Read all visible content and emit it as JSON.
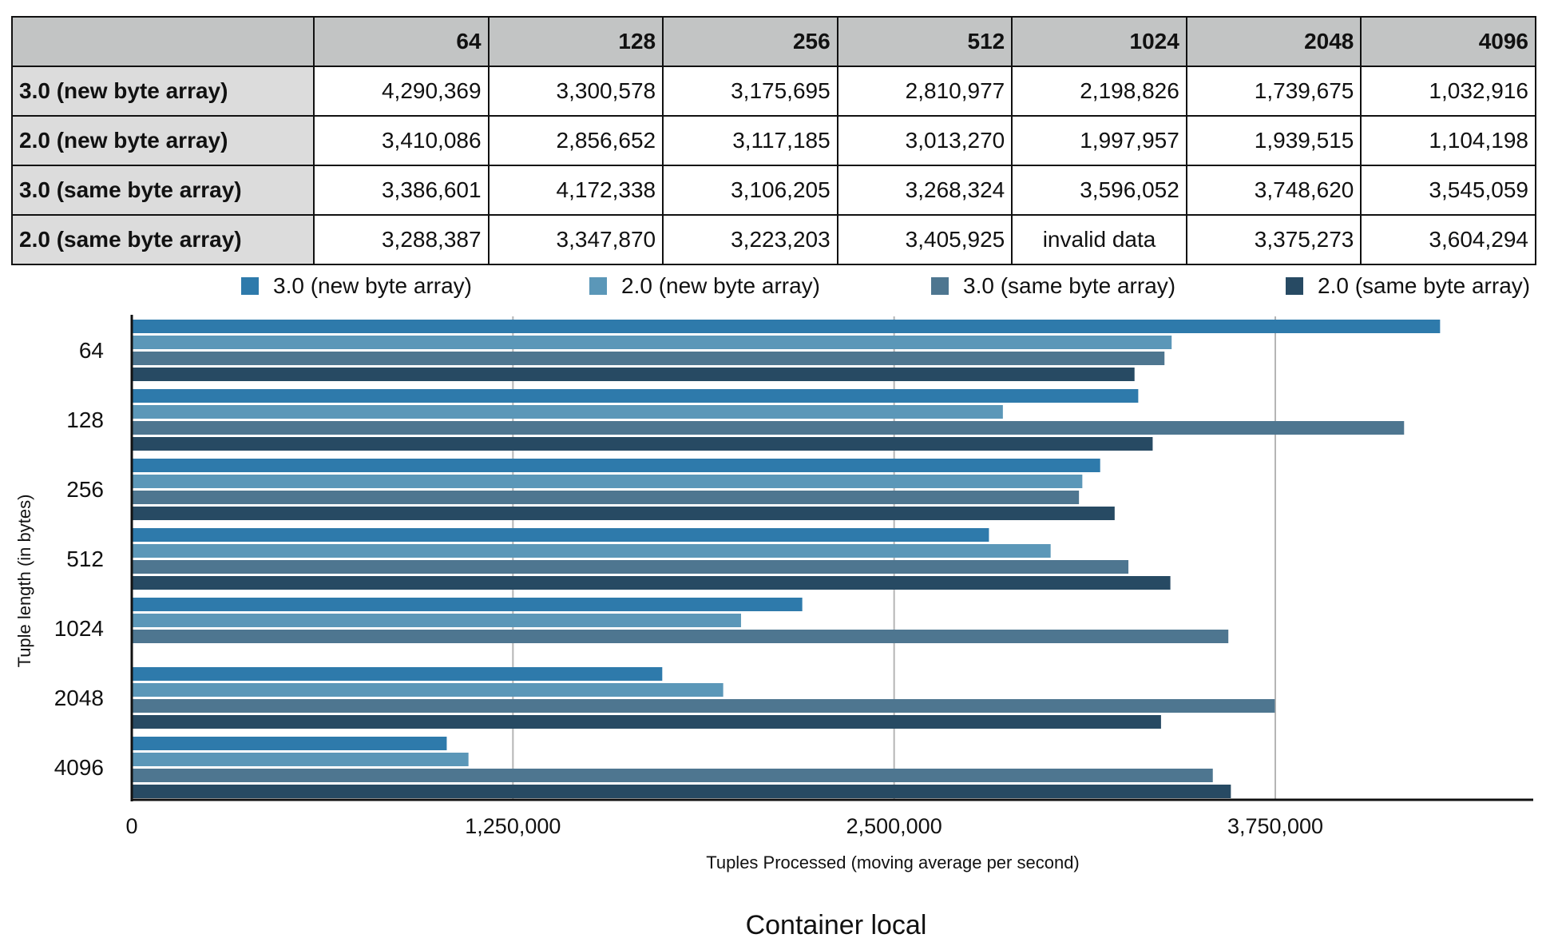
{
  "colors": {
    "series": [
      "#2e7aab",
      "#5b97b8",
      "#4e7690",
      "#274a63"
    ],
    "grid": "#b5b5b5",
    "axis": "#111111"
  },
  "table": {
    "columns": [
      "64",
      "128",
      "256",
      "512",
      "1024",
      "2048",
      "4096"
    ],
    "rows": [
      {
        "label": "3.0 (new  byte array)",
        "cells": [
          "4,290,369",
          "3,300,578",
          "3,175,695",
          "2,810,977",
          "2,198,826",
          "1,739,675",
          "1,032,916"
        ]
      },
      {
        "label": "2.0 (new byte array)",
        "cells": [
          "3,410,086",
          "2,856,652",
          "3,117,185",
          "3,013,270",
          "1,997,957",
          "1,939,515",
          "1,104,198"
        ]
      },
      {
        "label": "3.0 (same byte array)",
        "cells": [
          "3,386,601",
          "4,172,338",
          "3,106,205",
          "3,268,324",
          "3,596,052",
          "3,748,620",
          "3,545,059"
        ]
      },
      {
        "label": "2.0 (same byte array)",
        "cells": [
          "3,288,387",
          "3,347,870",
          "3,223,203",
          "3,405,925",
          "invalid data",
          "3,375,273",
          "3,604,294"
        ]
      }
    ]
  },
  "chart_data": {
    "type": "bar",
    "orientation": "horizontal",
    "title": "Container local",
    "xlabel": "Tuples Processed (moving average per second)",
    "ylabel": "Tuple length (in bytes)",
    "categories": [
      "64",
      "128",
      "256",
      "512",
      "1024",
      "2048",
      "4096"
    ],
    "xlim": [
      0,
      4500000
    ],
    "xticks": [
      0,
      1250000,
      2500000,
      3750000
    ],
    "xtick_labels": [
      "0",
      "1,250,000",
      "2,500,000",
      "3,750,000"
    ],
    "grid": true,
    "legend_position": "top",
    "series": [
      {
        "name": "3.0 (new  byte array)",
        "values": [
          4290369,
          3300578,
          3175695,
          2810977,
          2198826,
          1739675,
          1032916
        ]
      },
      {
        "name": "2.0 (new byte array)",
        "values": [
          3410086,
          2856652,
          3117185,
          3013270,
          1997957,
          1939515,
          1104198
        ]
      },
      {
        "name": "3.0 (same byte array)",
        "values": [
          3386601,
          4172338,
          3106205,
          3268324,
          3596052,
          3748620,
          3545059
        ]
      },
      {
        "name": "2.0 (same byte array)",
        "values": [
          3288387,
          3347870,
          3223203,
          3405925,
          null,
          3375273,
          3604294
        ]
      }
    ]
  }
}
